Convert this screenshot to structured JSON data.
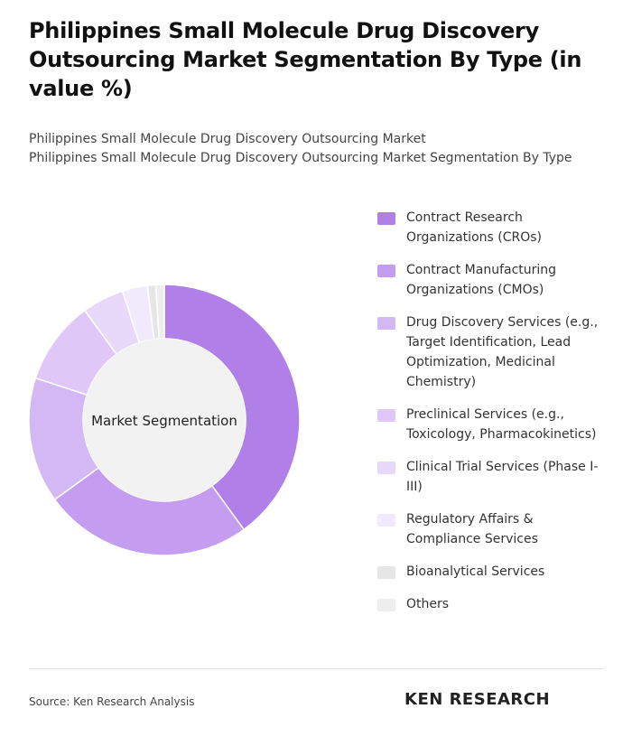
{
  "chart_data": {
    "type": "donut",
    "title": "Philippines Small Molecule Drug Discovery Outsourcing Market Segmentation By Type (in value %)",
    "subtitles": [
      "Philippines Small Molecule Drug Discovery Outsourcing Market",
      "Philippines Small Molecule Drug Discovery Outsourcing Market Segmentation By Type"
    ],
    "center_label": "Market Segmentation",
    "categories": [
      "Contract Research Organizations (CROs)",
      "Contract Manufacturing Organizations (CMOs)",
      "Drug Discovery Services (e.g., Target Identification, Lead Optimization, Medicinal Chemistry)",
      "Preclinical Services (e.g., Toxicology, Pharmacokinetics)",
      "Clinical Trial Services (Phase I-III)",
      "Regulatory Affairs & Compliance Services",
      "Bioanalytical Services",
      "Others"
    ],
    "values": [
      40,
      25,
      15,
      10,
      5,
      3,
      1,
      1
    ],
    "colors": [
      "#b07fe8",
      "#c49cf0",
      "#d4b8f4",
      "#dfc8f7",
      "#e8d8fa",
      "#f1e9fc",
      "#e6e6e6",
      "#eeeeee"
    ],
    "source": "Source: Ken Research Analysis",
    "logo": "KEN RESEARCH"
  }
}
